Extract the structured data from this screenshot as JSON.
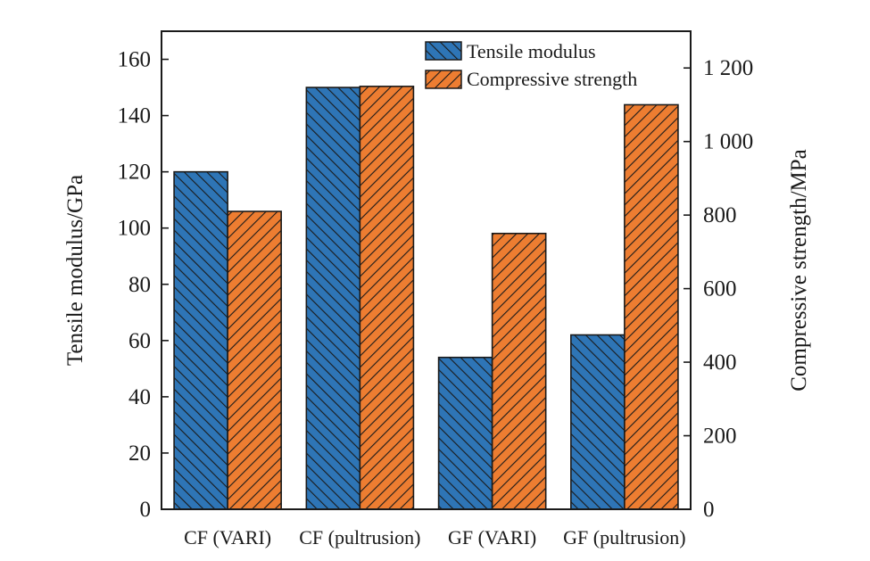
{
  "chart_data": {
    "type": "bar",
    "categories": [
      "CF (VARI)",
      "CF (pultrusion)",
      "GF (VARI)",
      "GF (pultrusion)"
    ],
    "series": [
      {
        "name": "Tensile modulus",
        "axis": "left",
        "values": [
          120,
          150,
          54,
          62
        ],
        "color": "#2e75b6"
      },
      {
        "name": "Compressive strength",
        "axis": "right",
        "values": [
          810,
          1150,
          750,
          1100
        ],
        "color": "#ed7d31"
      }
    ],
    "left_axis": {
      "label": "Tensile modulus/GPa",
      "ylim": [
        0,
        170
      ],
      "ticks": [
        0,
        20,
        40,
        60,
        80,
        100,
        120,
        140,
        160
      ],
      "tick_labels": [
        "0",
        "20",
        "40",
        "60",
        "80",
        "100",
        "120",
        "140",
        "160"
      ]
    },
    "right_axis": {
      "label": "Compressive strength/MPa",
      "ylim": [
        0,
        1300
      ],
      "ticks": [
        0,
        200,
        400,
        600,
        800,
        1000,
        1200
      ],
      "tick_labels": [
        "0",
        "200",
        "400",
        "600",
        "800",
        "1 000",
        "1 200"
      ]
    },
    "legend": {
      "position": "top-right",
      "entries": [
        "Tensile modulus",
        "Compressive strength"
      ]
    },
    "grid": false
  }
}
